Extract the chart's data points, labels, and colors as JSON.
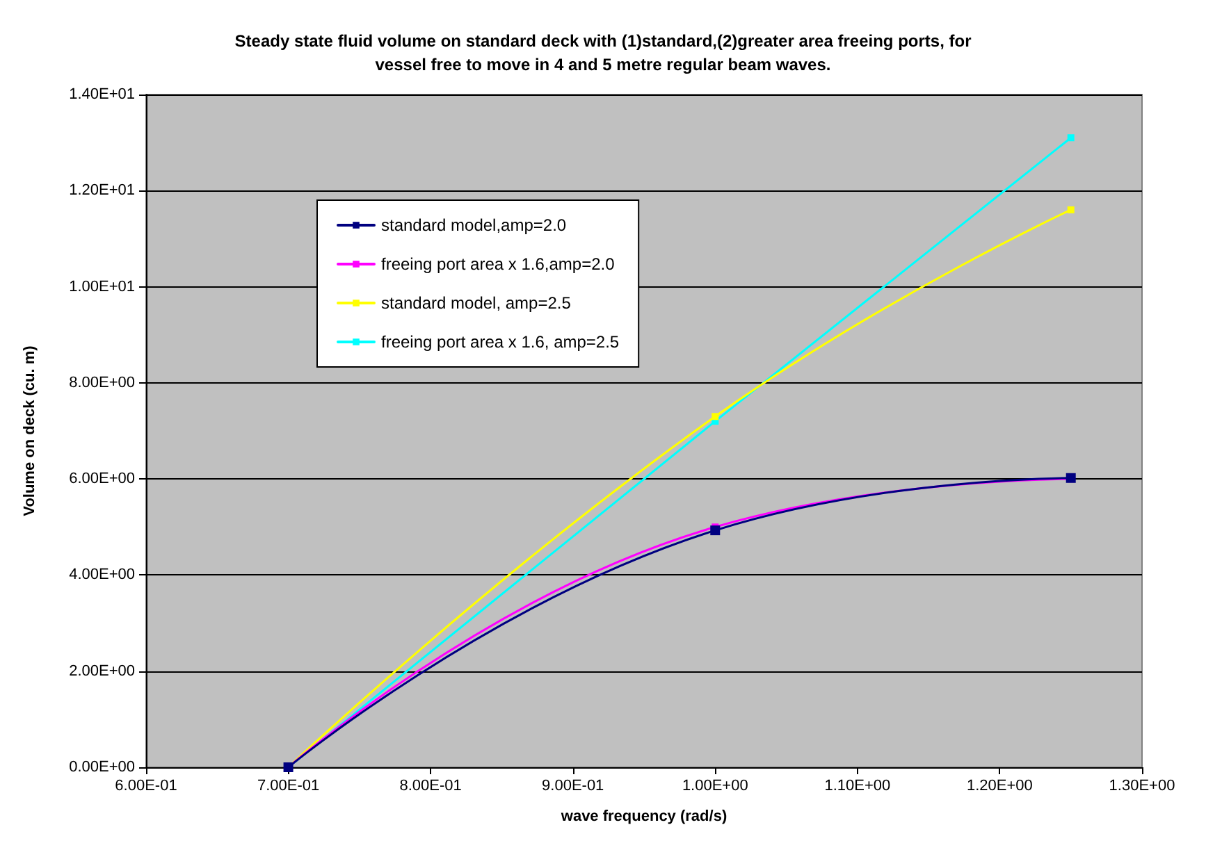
{
  "chart_data": {
    "type": "line",
    "title": "Steady state fluid volume on standard deck with (1)standard,(2)greater area freeing ports, for\nvessel free to move in 4 and 5 metre regular beam waves.",
    "xlabel": "wave frequency (rad/s)",
    "ylabel": "Volume on deck (cu. m)",
    "x": [
      0.7,
      1.0,
      1.25
    ],
    "series": [
      {
        "name": "standard model,amp=2.0",
        "color": "#000080",
        "values": [
          0,
          4.93,
          6.02
        ]
      },
      {
        "name": "freeing port area x 1.6,amp=2.0",
        "color": "#ff00ff",
        "values": [
          0,
          5.0,
          6.0
        ]
      },
      {
        "name": "standard model, amp=2.5",
        "color": "#ffff00",
        "values": [
          0,
          7.3,
          11.6
        ]
      },
      {
        "name": "freeing port area x 1.6, amp=2.5",
        "color": "#00ffff",
        "values": [
          0,
          7.2,
          13.1
        ]
      }
    ],
    "xlim": [
      0.6,
      1.3
    ],
    "xticks": [
      {
        "value": 0.6,
        "label": "6.00E-01"
      },
      {
        "value": 0.7,
        "label": "7.00E-01"
      },
      {
        "value": 0.8,
        "label": "8.00E-01"
      },
      {
        "value": 0.9,
        "label": "9.00E-01"
      },
      {
        "value": 1.0,
        "label": "1.00E+00"
      },
      {
        "value": 1.1,
        "label": "1.10E+00"
      },
      {
        "value": 1.2,
        "label": "1.20E+00"
      },
      {
        "value": 1.3,
        "label": "1.30E+00"
      }
    ],
    "ylim": [
      0,
      14
    ],
    "yticks": [
      {
        "value": 0,
        "label": "0.00E+00"
      },
      {
        "value": 2,
        "label": "2.00E+00"
      },
      {
        "value": 4,
        "label": "4.00E+00"
      },
      {
        "value": 6,
        "label": "6.00E+00"
      },
      {
        "value": 8,
        "label": "8.00E+00"
      },
      {
        "value": 10,
        "label": "1.00E+01"
      },
      {
        "value": 12,
        "label": "1.20E+01"
      },
      {
        "value": 14,
        "label": "1.40E+01"
      }
    ],
    "grid": "y",
    "legend": "top left",
    "marker": "square",
    "line_style": "solid"
  }
}
